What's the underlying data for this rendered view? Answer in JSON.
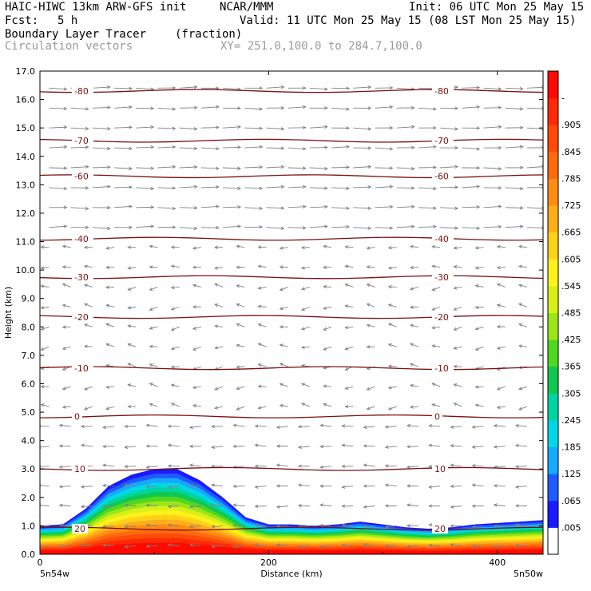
{
  "header": {
    "model": "HAIC-HIWC 13km ARW-GFS init",
    "center": "NCAR/MMM",
    "init": "Init: 06 UTC Mon 25 May 15",
    "fcst_label": "Fcst:",
    "fcst_value": "5 h",
    "valid": "Valid: 11 UTC Mon 25 May 15 (08 LST Mon 25 May 15)",
    "field": "Boundary Layer Tracer",
    "field_units": "(fraction)",
    "vectors": "Circulation vectors",
    "xy": "XY= 251.0,100.0 to 284.7,100.0"
  },
  "chart_data": {
    "type": "heatmap",
    "title": "Boundary Layer Tracer (fraction)",
    "xlabel": "Distance (km)",
    "ylabel": "Height (km)",
    "xlim": [
      0,
      440
    ],
    "ylim": [
      0,
      17
    ],
    "x_ticks": [
      "0",
      "200",
      "400"
    ],
    "y_ticks": [
      "0.0",
      "1.0",
      "2.0",
      "3.0",
      "4.0",
      "5.0",
      "6.0",
      "7.0",
      "8.0",
      "9.0",
      "10.0",
      "11.0",
      "12.0",
      "13.0",
      "14.0",
      "15.0",
      "16.0",
      "17.0"
    ],
    "x_endpoint_labels": [
      "5n54w",
      "5n50w"
    ],
    "colorbar_labels": [
      ".005",
      ".065",
      ".125",
      ".185",
      ".245",
      ".305",
      ".365",
      ".425",
      ".485",
      ".545",
      ".605",
      ".665",
      ".725",
      ".785",
      ".845",
      ".905",
      "-"
    ],
    "colorbar_colors": [
      "#ffffff",
      "#1a1aff",
      "#1f5cff",
      "#17a8ff",
      "#00d8e8",
      "#00d4a0",
      "#10c850",
      "#50d820",
      "#9ae61a",
      "#d8f018",
      "#fff21a",
      "#ffd21a",
      "#ffae1a",
      "#ff8c14",
      "#ff6a0f",
      "#ff4a0a",
      "#ff2a05",
      "#ff0a00"
    ],
    "temperature_contours": [
      {
        "label": "20",
        "height_km": 0.9
      },
      {
        "label": "10",
        "height_km": 3.0
      },
      {
        "label": "0",
        "height_km": 4.85
      },
      {
        "label": "-10",
        "height_km": 6.55
      },
      {
        "label": "-20",
        "height_km": 8.35
      },
      {
        "label": "-30",
        "height_km": 9.75
      },
      {
        "label": "-40",
        "height_km": 11.1
      },
      {
        "label": "-60",
        "height_km": 13.3
      },
      {
        "label": "-70",
        "height_km": 14.55
      },
      {
        "label": "-80",
        "height_km": 16.3
      }
    ],
    "tracer_top_km": [
      [
        0,
        1.0
      ],
      [
        20,
        1.05
      ],
      [
        40,
        1.6
      ],
      [
        60,
        2.4
      ],
      [
        80,
        2.8
      ],
      [
        100,
        3.0
      ],
      [
        120,
        3.0
      ],
      [
        140,
        2.6
      ],
      [
        160,
        2.0
      ],
      [
        180,
        1.3
      ],
      [
        200,
        1.05
      ],
      [
        220,
        1.05
      ],
      [
        240,
        1.0
      ],
      [
        260,
        1.05
      ],
      [
        280,
        1.15
      ],
      [
        300,
        1.05
      ],
      [
        320,
        0.95
      ],
      [
        340,
        0.9
      ],
      [
        360,
        0.95
      ],
      [
        380,
        1.05
      ],
      [
        400,
        1.1
      ],
      [
        420,
        1.15
      ],
      [
        440,
        1.2
      ]
    ],
    "colors": {
      "contour": "#7a1010",
      "vector": "#808080"
    }
  }
}
